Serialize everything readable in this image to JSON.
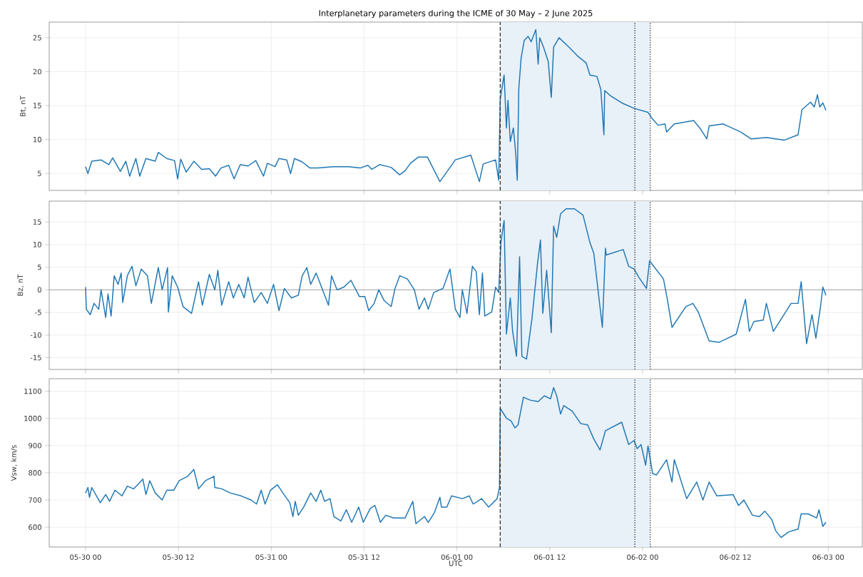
{
  "chart_data": [
    {
      "type": "line",
      "title": "Interplanetary parameters during the ICME of 30 May – 2 June 2025",
      "ylabel": "Bt, nT",
      "color": "#1f77b4",
      "grid": true,
      "tick_labels": "y",
      "xlim": [
        "2025-05-29T19:18",
        "2025-06-03T04:24"
      ],
      "ylim": [
        2.5,
        27.3
      ],
      "yticks": [
        5,
        10,
        15,
        20,
        25
      ],
      "xticks": [
        {
          "value": "2025-05-30T00:00",
          "label": null
        },
        {
          "value": "2025-05-30T12:00",
          "label": null
        },
        {
          "value": "2025-05-31T00:00",
          "label": null
        },
        {
          "value": "2025-05-31T12:00",
          "label": null
        },
        {
          "value": "2025-06-01T00:00",
          "label": null
        },
        {
          "value": "2025-06-01T12:00",
          "label": null
        },
        {
          "value": "2025-06-02T00:00",
          "label": null
        },
        {
          "value": "2025-06-02T12:00",
          "label": null
        },
        {
          "value": "2025-06-03T00:00",
          "label": null
        }
      ],
      "x": [
        "2025-05-30T00:00",
        "2025-05-30T00:18",
        "2025-05-30T00:48",
        "2025-05-30T02:00",
        "2025-05-30T03:00",
        "2025-05-30T03:30",
        "2025-05-30T04:30",
        "2025-05-30T05:12",
        "2025-05-30T05:42",
        "2025-05-30T06:30",
        "2025-05-30T07:00",
        "2025-05-30T07:48",
        "2025-05-30T09:00",
        "2025-05-30T09:24",
        "2025-05-30T10:30",
        "2025-05-30T11:30",
        "2025-05-30T11:54",
        "2025-05-30T12:18",
        "2025-05-30T13:00",
        "2025-05-30T14:00",
        "2025-05-30T15:00",
        "2025-05-30T16:00",
        "2025-05-30T16:48",
        "2025-05-30T17:30",
        "2025-05-30T18:30",
        "2025-05-30T19:12",
        "2025-05-30T20:00",
        "2025-05-30T21:00",
        "2025-05-30T22:00",
        "2025-05-30T23:00",
        "2025-05-30T23:30",
        "2025-05-31T00:30",
        "2025-05-31T01:00",
        "2025-05-31T02:00",
        "2025-05-31T02:30",
        "2025-05-31T03:00",
        "2025-05-31T04:00",
        "2025-05-31T05:00",
        "2025-05-31T06:00",
        "2025-05-31T08:00",
        "2025-05-31T10:00",
        "2025-05-31T11:30",
        "2025-05-31T12:30",
        "2025-05-31T13:00",
        "2025-05-31T14:00",
        "2025-05-31T15:30",
        "2025-05-31T16:36",
        "2025-05-31T17:18",
        "2025-05-31T18:00",
        "2025-05-31T19:00",
        "2025-05-31T20:12",
        "2025-05-31T21:48",
        "2025-05-31T23:48",
        "2025-06-01T01:48",
        "2025-06-01T02:54",
        "2025-06-01T03:24",
        "2025-06-01T05:00",
        "2025-06-01T05:24",
        "2025-06-01T05:36",
        "2025-06-01T06:06",
        "2025-06-01T06:24",
        "2025-06-01T06:36",
        "2025-06-01T06:54",
        "2025-06-01T07:18",
        "2025-06-01T07:36",
        "2025-06-01T07:48",
        "2025-06-01T08:00",
        "2025-06-01T08:18",
        "2025-06-01T08:42",
        "2025-06-01T09:12",
        "2025-06-01T09:36",
        "2025-06-01T10:12",
        "2025-06-01T10:30",
        "2025-06-01T10:42",
        "2025-06-01T11:12",
        "2025-06-01T11:48",
        "2025-06-01T12:12",
        "2025-06-01T12:30",
        "2025-06-01T13:12",
        "2025-06-01T14:30",
        "2025-06-01T15:36",
        "2025-06-01T16:42",
        "2025-06-01T17:12",
        "2025-06-01T18:06",
        "2025-06-01T18:36",
        "2025-06-01T19:00",
        "2025-06-01T19:06",
        "2025-06-01T19:54",
        "2025-06-01T21:18",
        "2025-06-01T22:54",
        "2025-06-02T00:42",
        "2025-06-02T01:18",
        "2025-06-02T02:00",
        "2025-06-02T02:54",
        "2025-06-02T03:06",
        "2025-06-02T04:06",
        "2025-06-02T06:36",
        "2025-06-02T07:24",
        "2025-06-02T08:18",
        "2025-06-02T08:36",
        "2025-06-02T10:24",
        "2025-06-02T12:42",
        "2025-06-02T14:00",
        "2025-06-02T16:00",
        "2025-06-02T18:18",
        "2025-06-02T20:06",
        "2025-06-02T20:36",
        "2025-06-02T21:42",
        "2025-06-02T22:12",
        "2025-06-02T22:36",
        "2025-06-02T22:54",
        "2025-06-02T23:18",
        "2025-06-02T23:42"
      ],
      "values": [
        6.0,
        5.0,
        6.8,
        7.0,
        6.3,
        7.3,
        5.3,
        6.8,
        4.6,
        7.2,
        4.6,
        7.2,
        6.8,
        8.1,
        7.2,
        6.9,
        4.2,
        7.1,
        5.2,
        6.8,
        5.6,
        5.7,
        4.6,
        5.8,
        6.2,
        4.2,
        6.3,
        6.1,
        6.9,
        4.6,
        6.5,
        6.0,
        7.2,
        7.0,
        5.0,
        7.2,
        6.7,
        5.8,
        5.8,
        6.0,
        6.0,
        5.8,
        6.2,
        5.6,
        6.3,
        5.9,
        4.8,
        5.4,
        6.5,
        7.4,
        7.4,
        3.8,
        7.0,
        7.7,
        3.8,
        6.4,
        7.0,
        4.0,
        16,
        19.5,
        11.7,
        15.8,
        9.7,
        11.7,
        8.0,
        4.0,
        17.5,
        22,
        24.6,
        25.2,
        24.4,
        26.2,
        21.1,
        25,
        23.6,
        21.5,
        16.2,
        23.6,
        25,
        23.6,
        22.3,
        21.3,
        19.5,
        19.3,
        17.4,
        10.7,
        17.2,
        16.4,
        15.4,
        14.6,
        14.0,
        13.0,
        12.1,
        12.3,
        11.1,
        12.3,
        12.8,
        11.7,
        10.1,
        12.0,
        12.3,
        11.1,
        10.1,
        10.3,
        9.9,
        10.7,
        14.4,
        15.5,
        14.8,
        16.6,
        14.8,
        15.4,
        14.3
      ],
      "bands": [
        {
          "axis": "x",
          "from": "2025-06-01T05:36",
          "to": "2025-06-02T01:00",
          "color": "#e8f0f8"
        }
      ],
      "ref_lines": [
        {
          "axis": "x",
          "value": "2025-06-01T05:36",
          "line_style": "dashed",
          "color": "#333333"
        },
        {
          "axis": "x",
          "value": "2025-06-01T23:00",
          "line_style": "dotted",
          "color": "#333333"
        },
        {
          "axis": "x",
          "value": "2025-06-02T01:00",
          "line_style": "dotted",
          "color": "#333333"
        }
      ]
    },
    {
      "type": "line",
      "ylabel": "Bz, nT",
      "color": "#1f77b4",
      "grid": true,
      "tick_labels": "y",
      "xlim": [
        "2025-05-29T19:18",
        "2025-06-03T04:24"
      ],
      "ylim": [
        -17.6,
        19.6
      ],
      "yticks": [
        -15,
        -10,
        -5,
        0,
        5,
        10,
        15
      ],
      "xticks": [
        {
          "value": "2025-05-30T00:00",
          "label": null
        },
        {
          "value": "2025-05-30T12:00",
          "label": null
        },
        {
          "value": "2025-05-31T00:00",
          "label": null
        },
        {
          "value": "2025-05-31T12:00",
          "label": null
        },
        {
          "value": "2025-06-01T00:00",
          "label": null
        },
        {
          "value": "2025-06-01T12:00",
          "label": null
        },
        {
          "value": "2025-06-02T00:00",
          "label": null
        },
        {
          "value": "2025-06-02T12:00",
          "label": null
        },
        {
          "value": "2025-06-03T00:00",
          "label": null
        }
      ],
      "x": [
        "2025-05-30T00:00",
        "2025-05-30T00:06",
        "2025-05-30T00:36",
        "2025-05-30T01:06",
        "2025-05-30T01:42",
        "2025-05-30T02:00",
        "2025-05-30T02:36",
        "2025-05-30T02:54",
        "2025-05-30T03:18",
        "2025-05-30T03:42",
        "2025-05-30T04:12",
        "2025-05-30T04:36",
        "2025-05-30T04:48",
        "2025-05-30T05:24",
        "2025-05-30T06:00",
        "2025-05-30T06:30",
        "2025-05-30T07:12",
        "2025-05-30T08:00",
        "2025-05-30T08:30",
        "2025-05-30T09:24",
        "2025-05-30T09:54",
        "2025-05-30T10:36",
        "2025-05-30T10:42",
        "2025-05-30T11:12",
        "2025-05-30T11:54",
        "2025-05-30T12:36",
        "2025-05-30T13:42",
        "2025-05-30T14:36",
        "2025-05-30T15:06",
        "2025-05-30T16:00",
        "2025-05-30T16:42",
        "2025-05-30T17:06",
        "2025-05-30T17:36",
        "2025-05-30T18:30",
        "2025-05-30T19:06",
        "2025-05-30T19:48",
        "2025-05-30T20:30",
        "2025-05-30T21:00",
        "2025-05-30T21:48",
        "2025-05-30T22:42",
        "2025-05-30T23:30",
        "2025-05-31T00:18",
        "2025-05-31T01:00",
        "2025-05-31T01:42",
        "2025-05-31T02:36",
        "2025-05-31T03:30",
        "2025-05-31T04:00",
        "2025-05-31T04:36",
        "2025-05-31T05:06",
        "2025-05-31T05:48",
        "2025-05-31T06:30",
        "2025-05-31T07:24",
        "2025-05-31T07:48",
        "2025-05-31T08:30",
        "2025-05-31T09:24",
        "2025-05-31T10:18",
        "2025-05-31T11:24",
        "2025-05-31T12:06",
        "2025-05-31T12:36",
        "2025-05-31T13:18",
        "2025-05-31T13:54",
        "2025-05-31T14:36",
        "2025-05-31T15:30",
        "2025-05-31T16:00",
        "2025-05-31T16:36",
        "2025-05-31T17:36",
        "2025-05-31T18:30",
        "2025-05-31T19:06",
        "2025-05-31T19:48",
        "2025-05-31T20:18",
        "2025-05-31T21:00",
        "2025-05-31T22:12",
        "2025-05-31T23:06",
        "2025-05-31T23:48",
        "2025-06-01T00:24",
        "2025-06-01T00:42",
        "2025-06-01T01:18",
        "2025-06-01T02:00",
        "2025-06-01T02:30",
        "2025-06-01T02:54",
        "2025-06-01T03:18",
        "2025-06-01T03:36",
        "2025-06-01T04:30",
        "2025-06-01T05:00",
        "2025-06-01T05:24",
        "2025-06-01T05:42",
        "2025-06-01T06:06",
        "2025-06-01T06:24",
        "2025-06-01T06:54",
        "2025-06-01T07:12",
        "2025-06-01T07:42",
        "2025-06-01T08:06",
        "2025-06-01T08:24",
        "2025-06-01T09:00",
        "2025-06-01T09:42",
        "2025-06-01T10:24",
        "2025-06-01T10:48",
        "2025-06-01T11:06",
        "2025-06-01T11:36",
        "2025-06-01T12:12",
        "2025-06-01T12:30",
        "2025-06-01T12:54",
        "2025-06-01T13:24",
        "2025-06-01T14:06",
        "2025-06-01T15:12",
        "2025-06-01T16:18",
        "2025-06-01T17:12",
        "2025-06-01T17:42",
        "2025-06-01T18:48",
        "2025-06-01T19:12",
        "2025-06-01T19:18",
        "2025-06-01T21:30",
        "2025-06-01T22:12",
        "2025-06-01T22:54",
        "2025-06-01T23:30",
        "2025-06-02T00:30",
        "2025-06-02T00:54",
        "2025-06-02T02:42",
        "2025-06-02T03:12",
        "2025-06-02T03:48",
        "2025-06-02T05:36",
        "2025-06-02T06:30",
        "2025-06-02T07:12",
        "2025-06-02T08:36",
        "2025-06-02T09:54",
        "2025-06-02T12:06",
        "2025-06-02T13:18",
        "2025-06-02T13:48",
        "2025-06-02T14:24",
        "2025-06-02T15:36",
        "2025-06-02T16:00",
        "2025-06-02T16:54",
        "2025-06-02T19:12",
        "2025-06-02T20:06",
        "2025-06-02T20:30",
        "2025-06-02T21:12",
        "2025-06-02T21:54",
        "2025-06-02T22:24",
        "2025-06-02T23:00",
        "2025-06-02T23:18",
        "2025-06-02T23:42"
      ],
      "values": [
        0.6,
        -4.3,
        -5.5,
        -3,
        -4.3,
        0,
        -6.1,
        -0.9,
        -5.8,
        3.1,
        1.2,
        3.7,
        -2.8,
        3.1,
        5.2,
        0.9,
        4.6,
        3.1,
        -3,
        4.9,
        0,
        4.9,
        -4.9,
        3.1,
        0.6,
        -3.7,
        -5.2,
        1.8,
        -3.4,
        3.4,
        0,
        4.3,
        -3.4,
        1.8,
        -1.8,
        1.2,
        -1.8,
        2.8,
        -2.8,
        -0.6,
        -3,
        1.2,
        -4.6,
        0.3,
        -1.8,
        -1.2,
        3.1,
        4.9,
        1.2,
        3.7,
        0.6,
        -3.4,
        3.1,
        0,
        0.6,
        2.1,
        -1.5,
        -1.5,
        -4.6,
        -3,
        0,
        -2.4,
        -3.7,
        0.3,
        3.1,
        2.4,
        0,
        -4.3,
        -1.8,
        -4.3,
        -0.6,
        0.3,
        4.6,
        -4.3,
        -6.1,
        0,
        -5.2,
        5.2,
        4,
        -5.5,
        3.7,
        -5.8,
        -4.9,
        0.6,
        -0.6,
        10.7,
        15.3,
        -9.8,
        -1.8,
        -9.2,
        -14.7,
        7.3,
        -14.7,
        -15.3,
        -6.4,
        5.5,
        11,
        -5.2,
        4.3,
        -9.5,
        14.1,
        11.6,
        16.8,
        17.9,
        17.9,
        16.5,
        10.4,
        8,
        -8.3,
        9.2,
        7.7,
        8.9,
        5.2,
        4.6,
        2.8,
        0.3,
        6.4,
        2.4,
        -2.1,
        -8.3,
        -3.7,
        -3,
        -4.9,
        -11.3,
        -11.6,
        -9.8,
        -2.1,
        -9.2,
        -7,
        -6.7,
        -3,
        -9.2,
        -3,
        -3,
        1.8,
        -11.9,
        -5.5,
        -10.7,
        -3.7,
        0.6,
        -1.2
      ],
      "bands": [
        {
          "axis": "x",
          "from": "2025-06-01T05:36",
          "to": "2025-06-02T01:00",
          "color": "#e8f0f8"
        }
      ],
      "ref_lines": [
        {
          "axis": "y",
          "value": 0,
          "line_style": "solid",
          "color": "#666666"
        },
        {
          "axis": "x",
          "value": "2025-06-01T05:36",
          "line_style": "dashed",
          "color": "#333333"
        },
        {
          "axis": "x",
          "value": "2025-06-01T23:00",
          "line_style": "dotted",
          "color": "#333333"
        },
        {
          "axis": "x",
          "value": "2025-06-02T01:00",
          "line_style": "dotted",
          "color": "#333333"
        }
      ]
    },
    {
      "type": "line",
      "ylabel": "Vsw, km/s",
      "xlabel": "UTC",
      "color": "#1f77b4",
      "grid": true,
      "xlim": [
        "2025-05-29T19:18",
        "2025-06-03T04:24"
      ],
      "ylim": [
        527,
        1146
      ],
      "yticks": [
        600,
        700,
        800,
        900,
        1000,
        1100
      ],
      "xticks": [
        {
          "value": "2025-05-30T00:00",
          "label": "05-30 00"
        },
        {
          "value": "2025-05-30T12:00",
          "label": "05-30 12"
        },
        {
          "value": "2025-05-31T00:00",
          "label": "05-31 00"
        },
        {
          "value": "2025-05-31T12:00",
          "label": "05-31 12"
        },
        {
          "value": "2025-06-01T00:00",
          "label": "06-01 00"
        },
        {
          "value": "2025-06-01T12:00",
          "label": "06-01 12"
        },
        {
          "value": "2025-06-02T00:00",
          "label": "06-02 00"
        },
        {
          "value": "2025-06-02T12:00",
          "label": "06-02 12"
        },
        {
          "value": "2025-06-03T00:00",
          "label": "06-03 00"
        }
      ],
      "x": [
        "2025-05-30T00:00",
        "2025-05-30T00:18",
        "2025-05-30T00:30",
        "2025-05-30T00:48",
        "2025-05-30T01:54",
        "2025-05-30T02:36",
        "2025-05-30T03:06",
        "2025-05-30T03:48",
        "2025-05-30T04:42",
        "2025-05-30T05:24",
        "2025-05-30T06:12",
        "2025-05-30T06:54",
        "2025-05-30T07:24",
        "2025-05-30T07:48",
        "2025-05-30T08:18",
        "2025-05-30T09:00",
        "2025-05-30T09:54",
        "2025-05-30T10:30",
        "2025-05-30T11:24",
        "2025-05-30T12:06",
        "2025-05-30T13:12",
        "2025-05-30T14:00",
        "2025-05-30T14:36",
        "2025-05-30T15:30",
        "2025-05-30T16:36",
        "2025-05-30T16:42",
        "2025-05-30T17:36",
        "2025-05-30T18:42",
        "2025-05-30T20:06",
        "2025-05-30T21:24",
        "2025-05-30T22:06",
        "2025-05-30T22:42",
        "2025-05-30T23:12",
        "2025-05-30T23:54",
        "2025-05-31T00:48",
        "2025-05-31T01:30",
        "2025-05-31T02:24",
        "2025-05-31T02:48",
        "2025-05-31T03:06",
        "2025-05-31T03:30",
        "2025-05-31T04:12",
        "2025-05-31T05:06",
        "2025-05-31T05:48",
        "2025-05-31T06:24",
        "2025-05-31T06:54",
        "2025-05-31T07:36",
        "2025-05-31T08:06",
        "2025-05-31T09:00",
        "2025-05-31T09:42",
        "2025-05-31T10:24",
        "2025-05-31T11:18",
        "2025-05-31T11:54",
        "2025-05-31T12:48",
        "2025-05-31T13:24",
        "2025-05-31T14:06",
        "2025-05-31T14:48",
        "2025-05-31T15:48",
        "2025-05-31T17:18",
        "2025-05-31T18:18",
        "2025-05-31T18:42",
        "2025-05-31T19:48",
        "2025-05-31T20:18",
        "2025-05-31T21:06",
        "2025-05-31T21:48",
        "2025-05-31T22:00",
        "2025-05-31T22:42",
        "2025-05-31T23:18",
        "2025-06-01T00:42",
        "2025-06-01T01:36",
        "2025-06-01T02:06",
        "2025-06-01T03:12",
        "2025-06-01T04:06",
        "2025-06-01T05:12",
        "2025-06-01T05:30",
        "2025-06-01T05:36",
        "2025-06-01T06:24",
        "2025-06-01T07:00",
        "2025-06-01T07:30",
        "2025-06-01T07:54",
        "2025-06-01T08:36",
        "2025-06-01T09:30",
        "2025-06-01T10:30",
        "2025-06-01T11:18",
        "2025-06-01T12:06",
        "2025-06-01T12:30",
        "2025-06-01T12:54",
        "2025-06-01T13:24",
        "2025-06-01T13:48",
        "2025-06-01T14:54",
        "2025-06-01T16:00",
        "2025-06-01T16:54",
        "2025-06-01T17:42",
        "2025-06-01T18:30",
        "2025-06-01T19:12",
        "2025-06-01T21:18",
        "2025-06-01T22:12",
        "2025-06-01T22:54",
        "2025-06-01T23:18",
        "2025-06-01T23:48",
        "2025-06-02T00:24",
        "2025-06-02T00:42",
        "2025-06-02T01:18",
        "2025-06-02T01:48",
        "2025-06-02T03:06",
        "2025-06-02T03:48",
        "2025-06-02T04:06",
        "2025-06-02T05:42",
        "2025-06-02T07:00",
        "2025-06-02T07:48",
        "2025-06-02T08:36",
        "2025-06-02T09:36",
        "2025-06-02T11:42",
        "2025-06-02T12:24",
        "2025-06-02T13:06",
        "2025-06-02T14:12",
        "2025-06-02T15:06",
        "2025-06-02T15:48",
        "2025-06-02T16:42",
        "2025-06-02T17:12",
        "2025-06-02T17:54",
        "2025-06-02T18:54",
        "2025-06-02T20:06",
        "2025-06-02T20:30",
        "2025-06-02T21:24",
        "2025-06-02T22:30",
        "2025-06-02T22:48",
        "2025-06-02T23:18",
        "2025-06-02T23:42"
      ],
      "values": [
        725,
        746,
        710,
        746,
        690,
        720,
        695,
        736,
        715,
        751,
        741,
        761,
        777,
        720,
        771,
        726,
        700,
        736,
        736,
        771,
        787,
        812,
        741,
        771,
        787,
        746,
        741,
        726,
        715,
        700,
        685,
        736,
        685,
        736,
        756,
        726,
        690,
        639,
        695,
        644,
        674,
        726,
        695,
        736,
        695,
        705,
        639,
        623,
        664,
        618,
        674,
        618,
        669,
        680,
        618,
        644,
        634,
        634,
        695,
        613,
        639,
        618,
        654,
        710,
        674,
        674,
        715,
        705,
        715,
        685,
        705,
        674,
        705,
        746,
        1037,
        1001,
        991,
        965,
        976,
        1078,
        1067,
        1062,
        1083,
        1072,
        1113,
        1083,
        1016,
        1047,
        1027,
        981,
        976,
        924,
        884,
        955,
        986,
        904,
        919,
        889,
        904,
        828,
        899,
        797,
        792,
        848,
        766,
        848,
        705,
        766,
        700,
        766,
        715,
        720,
        680,
        700,
        644,
        639,
        659,
        628,
        587,
        562,
        583,
        593,
        649,
        649,
        634,
        664,
        603,
        618
      ],
      "bands": [
        {
          "axis": "x",
          "from": "2025-06-01T05:36",
          "to": "2025-06-02T01:00",
          "color": "#e8f0f8"
        }
      ],
      "ref_lines": [
        {
          "axis": "x",
          "value": "2025-06-01T05:36",
          "line_style": "dashed",
          "color": "#333333"
        },
        {
          "axis": "x",
          "value": "2025-06-01T23:00",
          "line_style": "dotted",
          "color": "#333333"
        },
        {
          "axis": "x",
          "value": "2025-06-02T01:00",
          "line_style": "dotted",
          "color": "#333333"
        }
      ]
    }
  ]
}
